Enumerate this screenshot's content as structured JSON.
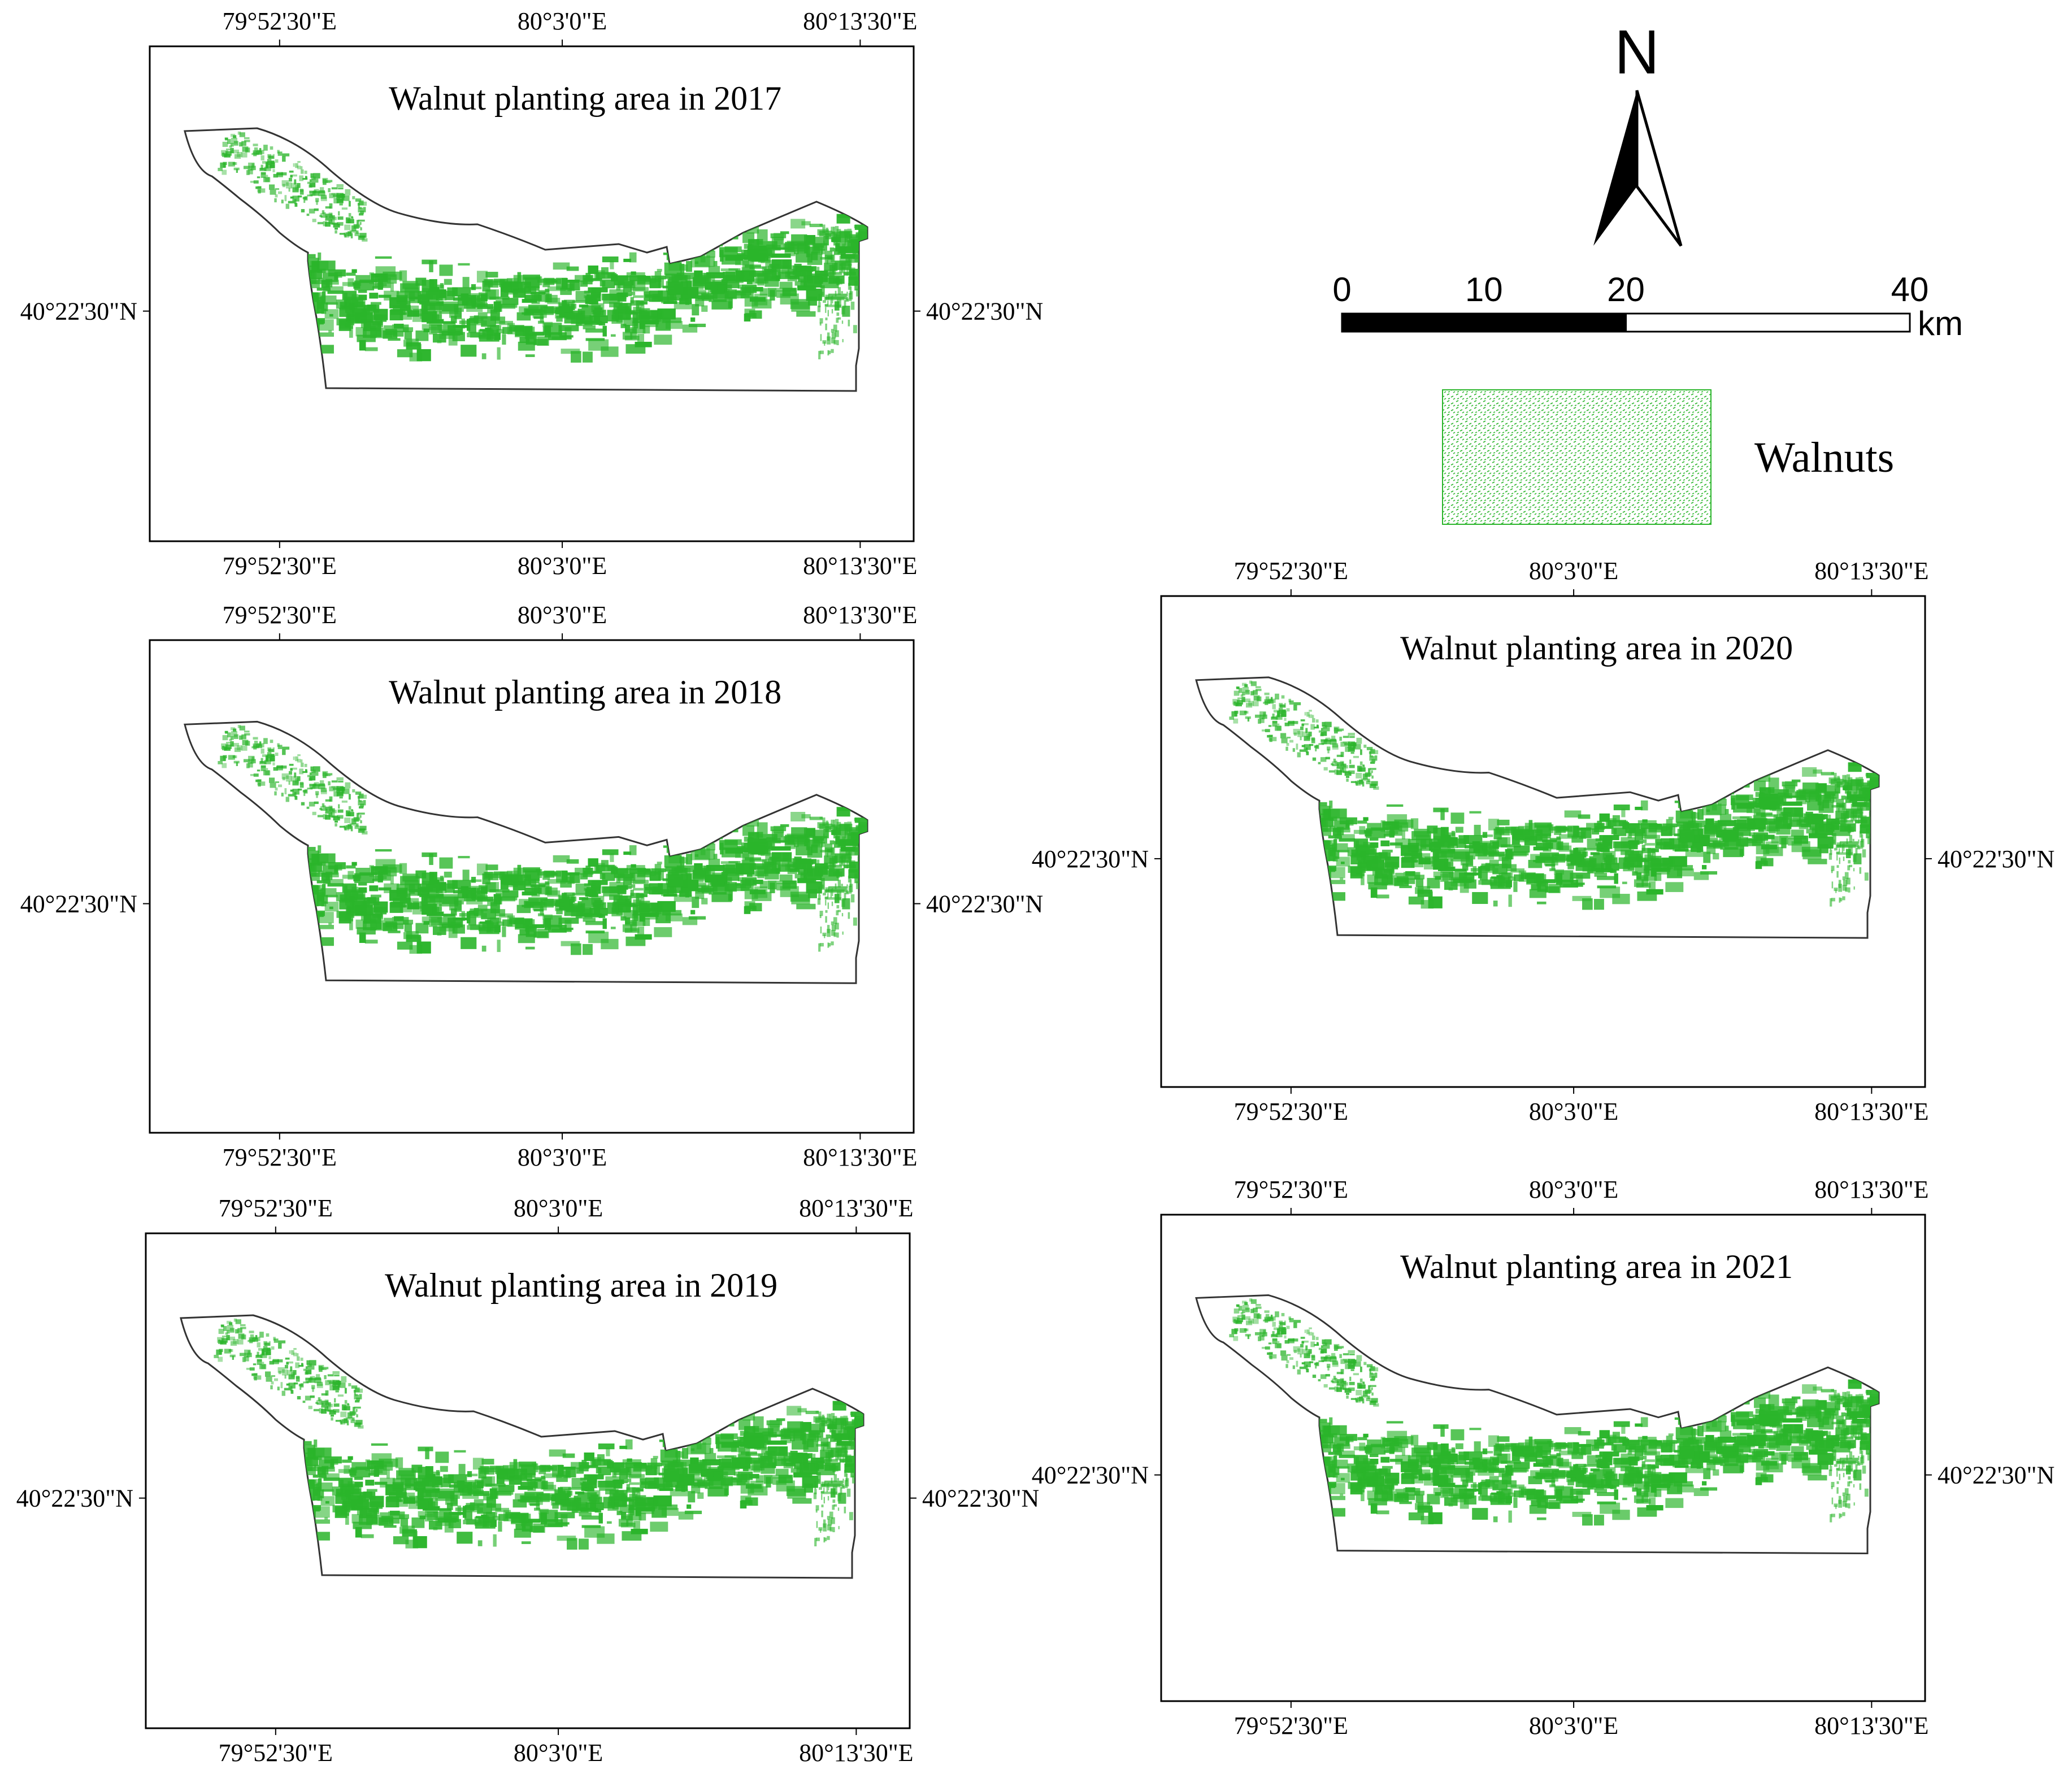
{
  "figure": {
    "panels": [
      {
        "id": "2017",
        "title": "Walnut planting area in 2017",
        "lon_top": [
          "79°52'30\"E",
          "80°3'0\"E",
          "80°13'30\"E"
        ],
        "lon_bottom": [
          "79°52'30\"E",
          "80°3'0\"E",
          "80°13'30\"E"
        ],
        "lat_left": "40°22'30\"N",
        "lat_right": "40°22'30\"N"
      },
      {
        "id": "2018",
        "title": "Walnut planting area in 2018",
        "lon_top": [
          "79°52'30\"E",
          "80°3'0\"E",
          "80°13'30\"E"
        ],
        "lon_bottom": [
          "79°52'30\"E",
          "80°3'0\"E",
          "80°13'30\"E"
        ],
        "lat_left": "40°22'30\"N",
        "lat_right": "40°22'30\"N"
      },
      {
        "id": "2019",
        "title": "Walnut planting area in 2019",
        "lon_top": [
          "79°52'30\"E",
          "80°3'0\"E",
          "80°13'30\"E"
        ],
        "lon_bottom": [
          "79°52'30\"E",
          "80°3'0\"E",
          "80°13'30\"E"
        ],
        "lat_left": "40°22'30\"N",
        "lat_right": "40°22'30\"N"
      },
      {
        "id": "2020",
        "title": "Walnut planting area in 2020",
        "lon_top": [
          "79°52'30\"E",
          "80°3'0\"E",
          "80°13'30\"E"
        ],
        "lon_bottom": [
          "79°52'30\"E",
          "80°3'0\"E",
          "80°13'30\"E"
        ],
        "lat_left": "40°22'30\"N",
        "lat_right": "40°22'30\"N"
      },
      {
        "id": "2021",
        "title": "Walnut planting area in 2021",
        "lon_top": [
          "79°52'30\"E",
          "80°3'0\"E",
          "80°13'30\"E"
        ],
        "lon_bottom": [
          "79°52'30\"E",
          "80°3'0\"E",
          "80°13'30\"E"
        ],
        "lat_left": "40°22'30\"N",
        "lat_right": "40°22'30\"N"
      }
    ],
    "north_arrow": {
      "label": "N"
    },
    "scale_bar": {
      "ticks": [
        "0",
        "10",
        "20",
        "40"
      ],
      "unit": "km"
    },
    "legend": {
      "label": "Walnuts",
      "icon": "walnut-pattern-swatch"
    },
    "colors": {
      "walnut": "#2bb52b",
      "boundary": "#333333"
    }
  }
}
